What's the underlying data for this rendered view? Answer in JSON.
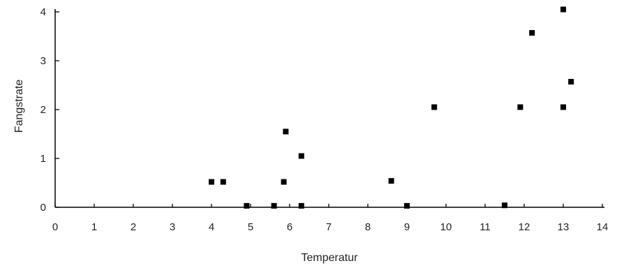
{
  "chart_data": {
    "type": "scatter",
    "title": "",
    "xlabel": "Temperatur",
    "ylabel": "Fangstrate",
    "xlim": [
      0,
      14
    ],
    "ylim": [
      0,
      4
    ],
    "grid": false,
    "x_ticks": [
      "0",
      "1",
      "2",
      "3",
      "4",
      "5",
      "6",
      "7",
      "8",
      "9",
      "10",
      "11",
      "12",
      "13",
      "14"
    ],
    "y_ticks": [
      "0",
      "1",
      "2",
      "3",
      "4"
    ],
    "marker": "square",
    "color": "#000000",
    "series": [
      {
        "points": [
          {
            "x": 4.0,
            "y": 0.52
          },
          {
            "x": 4.3,
            "y": 0.52
          },
          {
            "x": 4.9,
            "y": 0.03
          },
          {
            "x": 5.6,
            "y": 0.03
          },
          {
            "x": 5.85,
            "y": 0.52
          },
          {
            "x": 5.9,
            "y": 1.55
          },
          {
            "x": 6.3,
            "y": 1.05
          },
          {
            "x": 6.3,
            "y": 0.03
          },
          {
            "x": 8.6,
            "y": 0.54
          },
          {
            "x": 9.0,
            "y": 0.03
          },
          {
            "x": 9.7,
            "y": 2.05
          },
          {
            "x": 11.5,
            "y": 0.04
          },
          {
            "x": 11.9,
            "y": 2.05
          },
          {
            "x": 12.2,
            "y": 3.57
          },
          {
            "x": 13.0,
            "y": 4.05
          },
          {
            "x": 13.0,
            "y": 2.05
          },
          {
            "x": 13.2,
            "y": 2.57
          }
        ]
      }
    ]
  }
}
